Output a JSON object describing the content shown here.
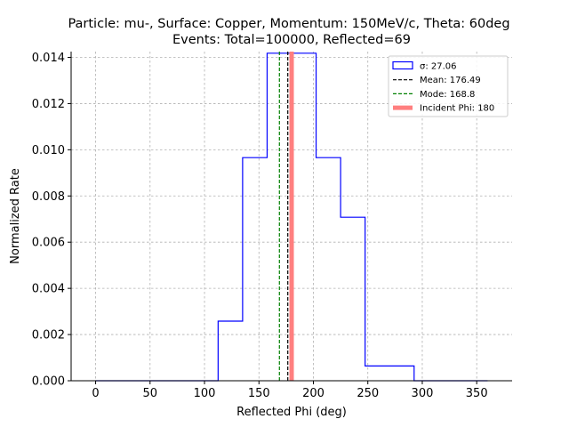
{
  "chart_data": {
    "type": "histogram",
    "title_line1": "Particle: mu-, Surface: Copper, Momentum: 150MeV/c, Theta: 60deg",
    "title_line2": "Events: Total=100000, Reflected=69",
    "xlabel": "Reflected Phi (deg)",
    "ylabel": "Normalized Rate",
    "xlim": [
      -22.5,
      382.5
    ],
    "ylim": [
      0,
      0.01425
    ],
    "xticks": [
      0,
      50,
      100,
      150,
      200,
      250,
      300,
      350
    ],
    "xtick_labels": [
      "0",
      "50",
      "100",
      "150",
      "200",
      "250",
      "300",
      "350"
    ],
    "yticks": [
      0.0,
      0.002,
      0.004,
      0.006,
      0.008,
      0.01,
      0.012,
      0.014
    ],
    "ytick_labels": [
      "0.000",
      "0.002",
      "0.004",
      "0.006",
      "0.008",
      "0.010",
      "0.012",
      "0.014"
    ],
    "grid": true,
    "legend_position": "top-right",
    "bin_edges": [
      0,
      22.5,
      45,
      67.5,
      90,
      112.5,
      135,
      157.5,
      180,
      202.5,
      225,
      247.5,
      270,
      292.5,
      315,
      337.5,
      360
    ],
    "counts": [
      0,
      0,
      0,
      0,
      0,
      0.00258,
      0.00966,
      0.01418,
      0.01418,
      0.00966,
      0.00708,
      0.00064,
      0.00064,
      0,
      0,
      0
    ],
    "mean": 176.49,
    "mode": 168.8,
    "incident_phi": 180,
    "legend": [
      {
        "label": "σ: 27.06",
        "style": "box",
        "color": "#0000ff"
      },
      {
        "label": "Mean: 176.49",
        "style": "dashed",
        "color": "#000000"
      },
      {
        "label": "Mode: 168.8",
        "style": "dashed",
        "color": "#008000"
      },
      {
        "label": "Incident Phi: 180",
        "style": "thick",
        "color": "#ff7f7f"
      }
    ]
  }
}
